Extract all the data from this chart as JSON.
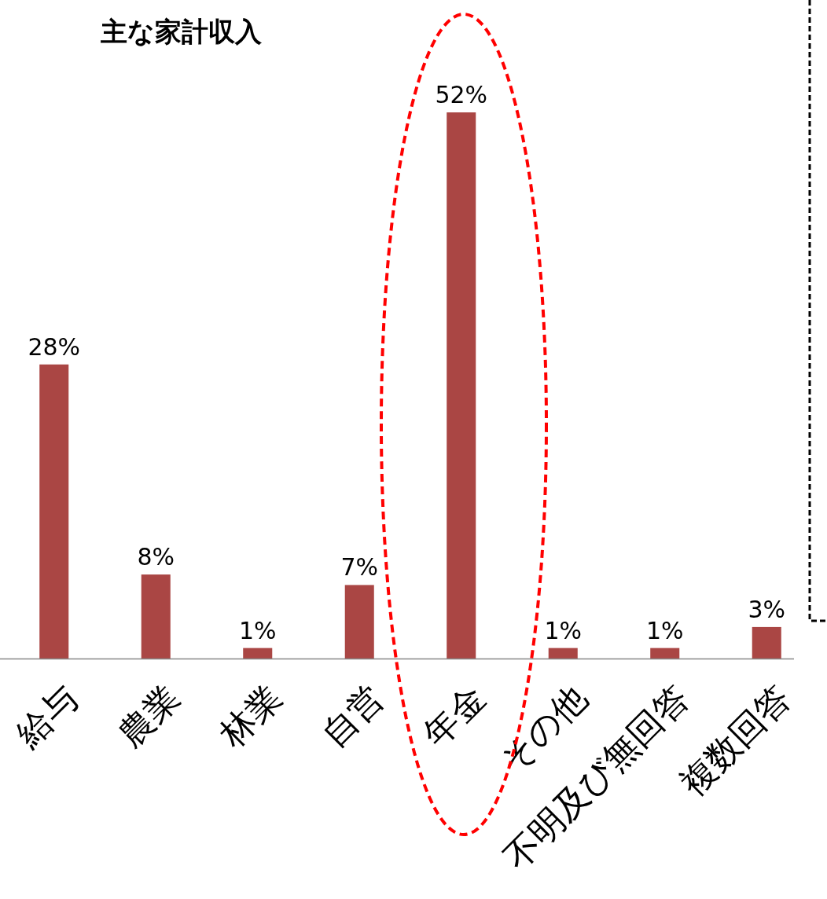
{
  "chart_data": {
    "type": "bar",
    "title": "主な家計収入",
    "categories": [
      "給与",
      "農業",
      "林業",
      "自営",
      "年金",
      "その他",
      "不明及び無回答",
      "複数回答"
    ],
    "values": [
      28,
      8,
      1,
      7,
      52,
      1,
      1,
      3
    ],
    "value_labels": [
      "28%",
      "8%",
      "1%",
      "7%",
      "52%",
      "1%",
      "1%",
      "3%"
    ],
    "color": "#aa4644"
  }
}
